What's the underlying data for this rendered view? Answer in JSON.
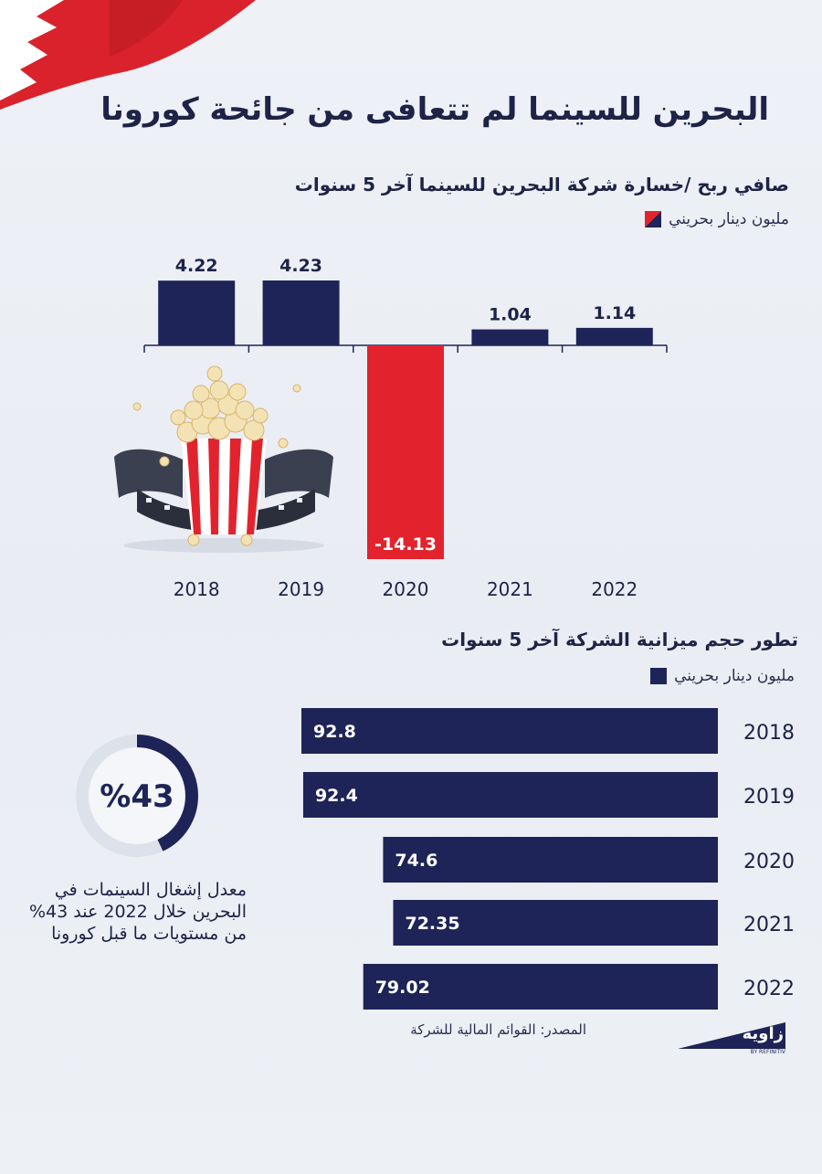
{
  "title": "البحرين للسينما لم تتعافى من جائحة كورونا",
  "colors": {
    "navy": "#1e2457",
    "red": "#e2232e",
    "text": "#1e2347"
  },
  "icons": [
    "bahrain-flag-icon",
    "popcorn-film-reel-icon",
    "zawya-logo-icon"
  ],
  "chart_data": [
    {
      "type": "bar",
      "title": "صافي ربح /خسارة شركة البحرين للسينما آخر 5 سنوات",
      "legend": "مليون دينار بحريني",
      "categories": [
        "2018",
        "2019",
        "2020",
        "2021",
        "2022"
      ],
      "values": [
        4.22,
        4.23,
        -14.13,
        1.04,
        1.14
      ],
      "value_labels": [
        "4.22",
        "4.23",
        "-14.13",
        "1.04",
        "1.14"
      ],
      "ylim": [
        -14.13,
        4.23
      ],
      "grid": false
    },
    {
      "type": "bar",
      "orientation": "horizontal",
      "title": "تطور حجم ميزانية الشركة آخر 5 سنوات",
      "legend": "مليون دينار بحريني",
      "categories": [
        "2018",
        "2019",
        "2020",
        "2021",
        "2022"
      ],
      "values": [
        92.8,
        92.4,
        74.6,
        72.35,
        79.02
      ],
      "value_labels": [
        "92.8",
        "92.4",
        "74.6",
        "72.35",
        "79.02"
      ],
      "grid": false
    }
  ],
  "occupancy": {
    "value_label": "%43",
    "fraction": 0.43,
    "text": "معدل إشغال السينمات في البحرين خلال 2022 عند 43% من مستويات ما قبل كورونا"
  },
  "source": "المصدر: القوائم المالية للشركة",
  "logo": {
    "text": "زاوية",
    "byline": "BY REFINITIV"
  }
}
